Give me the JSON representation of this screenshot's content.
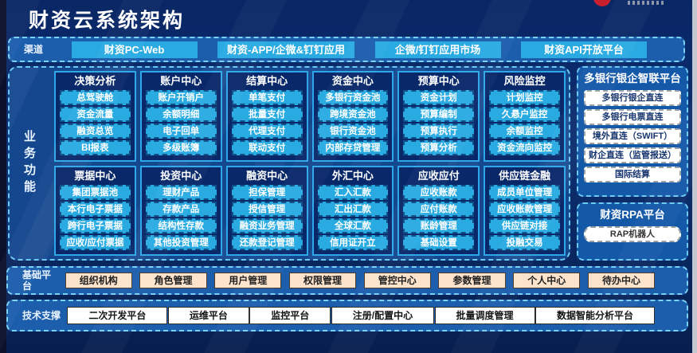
{
  "header": {
    "title": "财资云系统架构"
  },
  "channels": {
    "label": "渠道",
    "items": [
      "财资PC-Web",
      "财资-APP/企微&钉钉应用",
      "企微/钉钉应用市场",
      "财资API开放平台"
    ]
  },
  "business": {
    "label": "业务功能",
    "modules": [
      {
        "title": "决策分析",
        "items": [
          "总驾驶舱",
          "资金流量",
          "融资总览",
          "BI报表"
        ]
      },
      {
        "title": "账户中心",
        "items": [
          "账户开销户",
          "余额明细",
          "电子回单",
          "多级账簿"
        ]
      },
      {
        "title": "结算中心",
        "items": [
          "单笔支付",
          "批量支付",
          "代理支付",
          "联动支付"
        ]
      },
      {
        "title": "资金中心",
        "items": [
          "多银行资金池",
          "跨境资金池",
          "银行资金池",
          "内部存贷管理"
        ]
      },
      {
        "title": "预算中心",
        "items": [
          "资金计划",
          "预算编制",
          "预算执行",
          "预算分析"
        ]
      },
      {
        "title": "风险监控",
        "items": [
          "计划监控",
          "久悬户监控",
          "余额监控",
          "资金流向监控"
        ]
      },
      {
        "title": "票据中心",
        "items": [
          "集团票据池",
          "本行电子票据",
          "跨行电子票据",
          "应收/应付票据"
        ]
      },
      {
        "title": "投资中心",
        "items": [
          "理财产品",
          "存款产品",
          "结构性存款",
          "其他投资管理"
        ]
      },
      {
        "title": "融资中心",
        "items": [
          "担保管理",
          "授信管理",
          "融资业务管理",
          "还款登记管理"
        ]
      },
      {
        "title": "外汇中心",
        "items": [
          "汇入汇款",
          "汇出汇款",
          "全球汇款",
          "信用证开立"
        ]
      },
      {
        "title": "应收应付",
        "items": [
          "应收账款",
          "应付账款",
          "账龄管理",
          "基础设置"
        ]
      },
      {
        "title": "供应链金融",
        "items": [
          "成员单位管理",
          "应收账款管理",
          "供应链对接",
          "投融交易"
        ]
      }
    ]
  },
  "panels": {
    "bank": {
      "title": "多银行银企智联平台",
      "items": [
        "多银行银企直连",
        "多银行电票直连",
        "境外直连（SWIFT）",
        "财企直连（监管报送）",
        "国际结算"
      ]
    },
    "rpa": {
      "title": "财资RPA平台",
      "items": [
        "RAP机器人"
      ]
    }
  },
  "platform_row": {
    "label": "基础平台",
    "items": [
      "组织机构",
      "角色管理",
      "用户管理",
      "权限管理",
      "管控中心",
      "参数管理",
      "个人中心",
      "待办中心"
    ]
  },
  "tech_row": {
    "label": "技术支撑",
    "items": [
      "二次开发平台",
      "运维平台",
      "监控平台",
      "注册/配置中心",
      "批量调度管理",
      "数据智能分析平台"
    ]
  },
  "colors": {
    "accent_cyan": "#29abe2",
    "container_blue": "#1c5dac",
    "module_navy": "#09286a",
    "dashed_border": "#79d2f6",
    "peach": "#fde3cb",
    "page_navy": "#0a2765",
    "logo_red": "#c8202e"
  }
}
